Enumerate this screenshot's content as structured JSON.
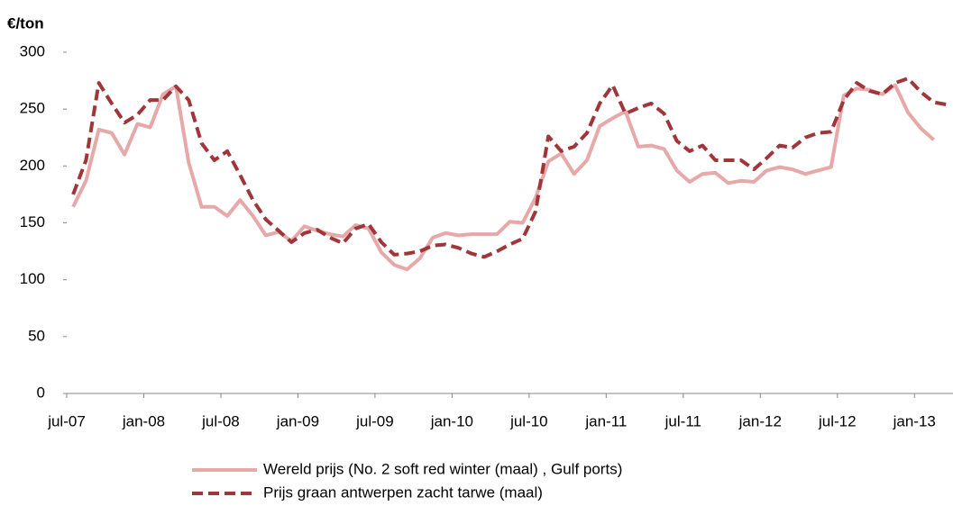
{
  "chart_data": {
    "type": "line",
    "title": "€/ton",
    "categories": [
      "jul-07",
      null,
      null,
      null,
      null,
      null,
      "jan-08",
      null,
      null,
      null,
      null,
      null,
      "jul-08",
      null,
      null,
      null,
      null,
      null,
      "jan-09",
      null,
      null,
      null,
      null,
      null,
      "jul-09",
      null,
      null,
      null,
      null,
      null,
      "jan-10",
      null,
      null,
      null,
      null,
      null,
      "jul-10",
      null,
      null,
      null,
      null,
      null,
      "jan-11",
      null,
      null,
      null,
      null,
      null,
      "jul-11",
      null,
      null,
      null,
      null,
      null,
      "jan-12",
      null,
      null,
      null,
      null,
      null,
      "jul-12",
      null,
      null,
      null,
      null,
      null,
      "jan-13",
      null,
      null
    ],
    "series": [
      {
        "name": "Wereld prijs (No. 2 soft red winter (maal) , Gulf ports)",
        "color": "#e6a8a8",
        "dash": false,
        "values": [
          164,
          187,
          232,
          229,
          210,
          237,
          234,
          263,
          270,
          203,
          164,
          164,
          156,
          170,
          156,
          139,
          142,
          134,
          147,
          143,
          140,
          138,
          148,
          145,
          124,
          113,
          109,
          119,
          137,
          141,
          139,
          140,
          140,
          140,
          151,
          150,
          172,
          204,
          211,
          193,
          205,
          235,
          242,
          248,
          217,
          218,
          215,
          196,
          186,
          193,
          194,
          185,
          187,
          186,
          196,
          199,
          197,
          193,
          196,
          199,
          262,
          268,
          267,
          263,
          271,
          247,
          233,
          223,
          null
        ]
      },
      {
        "name": "Prijs graan antwerpen zacht tarwe (maal)",
        "color": "#a0363a",
        "dash": true,
        "values": [
          175,
          205,
          273,
          255,
          238,
          245,
          258,
          258,
          270,
          258,
          220,
          205,
          213,
          192,
          170,
          153,
          143,
          133,
          141,
          144,
          137,
          132,
          145,
          149,
          133,
          122,
          123,
          125,
          130,
          131,
          128,
          123,
          120,
          125,
          131,
          136,
          160,
          226,
          213,
          217,
          229,
          255,
          271,
          246,
          251,
          255,
          246,
          222,
          213,
          218,
          205,
          205,
          205,
          197,
          207,
          218,
          216,
          225,
          229,
          230,
          258,
          273,
          266,
          263,
          273,
          277,
          265,
          256,
          254
        ]
      }
    ],
    "ylim": [
      0,
      300
    ],
    "yticks": [
      0,
      50,
      100,
      150,
      200,
      250,
      300
    ],
    "grid": false,
    "legend": "bottom"
  }
}
